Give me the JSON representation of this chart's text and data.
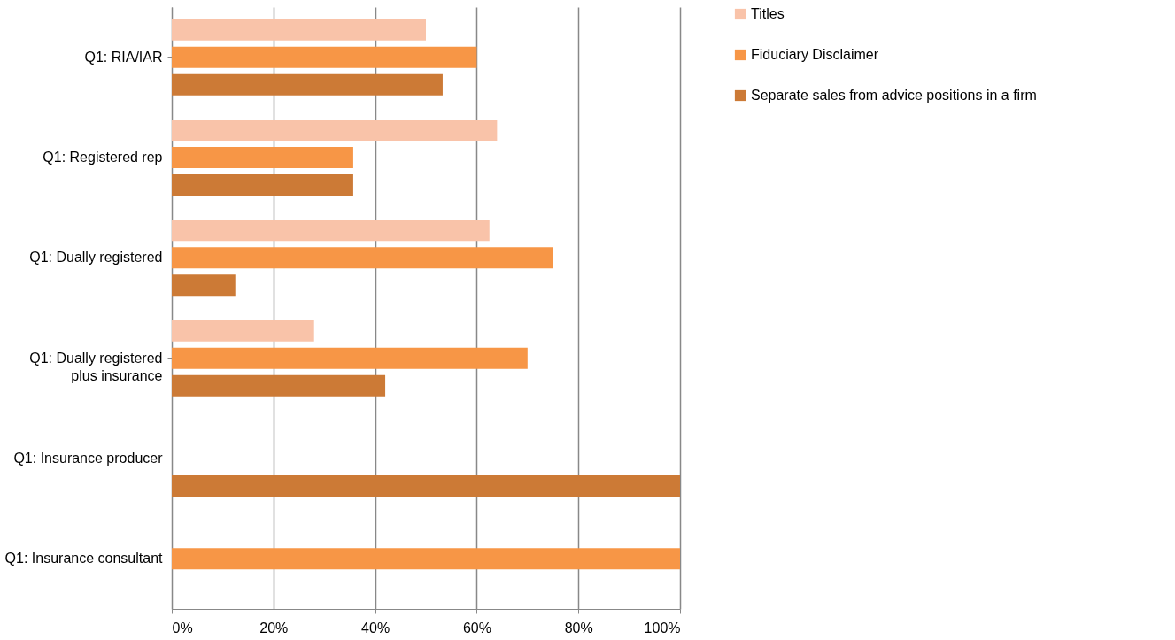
{
  "chart_data": {
    "type": "bar",
    "orientation": "horizontal",
    "categories": [
      "Q1: RIA/IAR",
      "Q1: Registered rep",
      "Q1: Dually registered",
      "Q1: Dually registered plus insurance",
      "Q1: Insurance producer",
      "Q1: Insurance consultant"
    ],
    "series": [
      {
        "name": "Titles",
        "color": "#f9c3a9",
        "values": [
          50,
          64,
          62.5,
          28,
          null,
          null
        ]
      },
      {
        "name": "Fiduciary Disclaimer",
        "color": "#f79646",
        "values": [
          60,
          35.7,
          75,
          70,
          null,
          100
        ]
      },
      {
        "name": "Separate sales from advice positions in a firm",
        "color": "#cc7a36",
        "values": [
          53.3,
          35.7,
          12.5,
          42,
          100,
          null
        ]
      }
    ],
    "xlim": [
      0,
      100
    ],
    "xticks": [
      {
        "value": 0,
        "label": "0%"
      },
      {
        "value": 20,
        "label": "20%"
      },
      {
        "value": 40,
        "label": "40%"
      },
      {
        "value": 60,
        "label": "60%"
      },
      {
        "value": 80,
        "label": "80%"
      },
      {
        "value": 100,
        "label": "100%"
      }
    ],
    "grid": "x",
    "legend": "right"
  }
}
